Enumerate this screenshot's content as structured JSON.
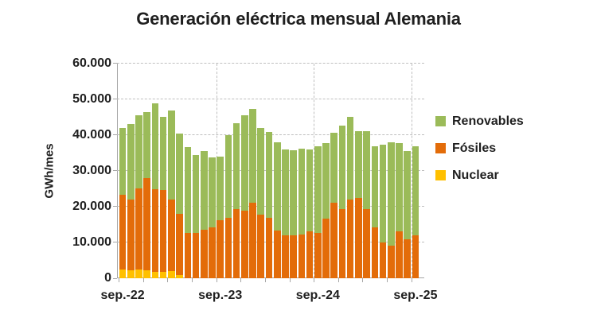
{
  "title": "Generación eléctrica mensual Alemania",
  "colors": {
    "renewables": "#9BBB59",
    "fossil": "#E36C09",
    "nuclear": "#FFC000",
    "gridline": "#BFBFBF",
    "axis": "#A6A6A6",
    "text": "#1F1F1F"
  },
  "chart_data": {
    "type": "bar",
    "stacked": true,
    "title": "Generación eléctrica mensual Alemania",
    "xlabel": "",
    "ylabel": "GWh/mes",
    "ylim": [
      0,
      60000
    ],
    "grid": "dashed horizontal lines every 10000; dashed vertical lines at each September",
    "legend_position": "right",
    "yticks": [
      {
        "value": 0,
        "label": "0"
      },
      {
        "value": 10000,
        "label": "10.000"
      },
      {
        "value": 20000,
        "label": "20.000"
      },
      {
        "value": 30000,
        "label": "30.000"
      },
      {
        "value": 40000,
        "label": "40.000"
      },
      {
        "value": 50000,
        "label": "50.000"
      },
      {
        "value": 60000,
        "label": "60.000"
      }
    ],
    "xticks": [
      {
        "index": 0,
        "label": "sep.-22"
      },
      {
        "index": 12,
        "label": "sep.-23"
      },
      {
        "index": 24,
        "label": "sep.-24"
      },
      {
        "index": 36,
        "label": "sep.-25"
      }
    ],
    "year_boundaries": [
      12,
      24,
      36
    ],
    "minor_tick_every": 3,
    "categories": [
      "sep-22",
      "oct-22",
      "nov-22",
      "dic-22",
      "ene-23",
      "feb-23",
      "mar-23",
      "abr-23",
      "may-23",
      "jun-23",
      "jul-23",
      "ago-23",
      "sep-23",
      "oct-23",
      "nov-23",
      "dic-23",
      "ene-24",
      "feb-24",
      "mar-24",
      "abr-24",
      "may-24",
      "jun-24",
      "jul-24",
      "ago-24",
      "sep-24",
      "oct-24",
      "nov-24",
      "dic-24",
      "ene-25",
      "feb-25",
      "mar-25",
      "abr-25",
      "may-25",
      "jun-25",
      "jul-25",
      "ago-25",
      "sep-25"
    ],
    "series": [
      {
        "name": "Nuclear",
        "color": "#FFC000",
        "values": [
          2400,
          2200,
          2400,
          2300,
          1800,
          1800,
          2100,
          1000,
          0,
          0,
          0,
          0,
          0,
          0,
          0,
          0,
          0,
          0,
          0,
          0,
          0,
          0,
          0,
          0,
          0,
          0,
          0,
          0,
          0,
          0,
          0,
          0,
          0,
          0,
          0,
          0,
          0
        ]
      },
      {
        "name": "Fósiles",
        "color": "#E36C09",
        "values": [
          20900,
          19700,
          22800,
          25700,
          23000,
          22800,
          20000,
          16900,
          12700,
          12600,
          13500,
          14200,
          16300,
          17000,
          19300,
          18900,
          21100,
          17800,
          17000,
          13300,
          11900,
          11900,
          12200,
          13100,
          12600,
          16700,
          21100,
          19400,
          21900,
          22500,
          19400,
          14200,
          10000,
          9200,
          13200,
          10900,
          12000
        ]
      },
      {
        "name": "Renovables",
        "color": "#9BBB59",
        "values": [
          18800,
          21200,
          20400,
          18500,
          24200,
          20600,
          24900,
          22500,
          24000,
          21800,
          22100,
          19500,
          17600,
          23000,
          24100,
          26600,
          26300,
          24200,
          23800,
          24800,
          24100,
          23900,
          24100,
          22900,
          24400,
          21100,
          19600,
          23200,
          23300,
          18600,
          21700,
          22800,
          27400,
          28900,
          24600,
          24700,
          25000
        ]
      }
    ],
    "legend": [
      {
        "label": "Renovables",
        "color": "#9BBB59"
      },
      {
        "label": "Fósiles",
        "color": "#E36C09"
      },
      {
        "label": "Nuclear",
        "color": "#FFC000"
      }
    ]
  }
}
